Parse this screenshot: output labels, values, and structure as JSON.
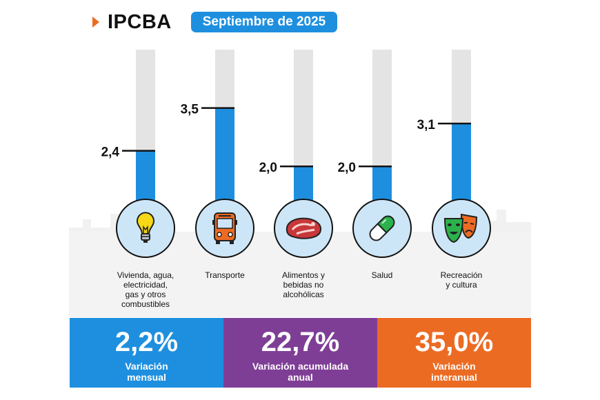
{
  "header": {
    "brand": "IPCBA",
    "period": "Septiembre de 2025"
  },
  "colors": {
    "accent_blue": "#1e8fdf",
    "accent_purple": "#7f3e96",
    "accent_orange": "#ec6b23",
    "track_gray": "#e4e4e4"
  },
  "chart_data": {
    "type": "bar",
    "title": "IPCBA Septiembre de 2025",
    "categories": [
      "Vivienda, agua, electricidad, gas y otros combustibles",
      "Transporte",
      "Alimentos y bebidas no alcohólicas",
      "Salud",
      "Recreación y cultura"
    ],
    "category_labels": [
      "Vivienda, agua,\nelectricidad,\ngas y otros\ncombustibles",
      "Transporte",
      "Alimentos y\nbebidas no\nalcohólicas",
      "Salud",
      "Recreación\ny cultura"
    ],
    "values": [
      2.4,
      3.5,
      2.0,
      2.0,
      3.1
    ],
    "value_labels": [
      "2,4",
      "3,5",
      "2,0",
      "2,0",
      "3,1"
    ],
    "icons": [
      "lightbulb-icon",
      "bus-icon",
      "steak-icon",
      "pill-icon",
      "theater-masks-icon"
    ],
    "ylim": [
      1.1,
      5.0
    ],
    "xlabel": "",
    "ylabel": ""
  },
  "summary": [
    {
      "value": "2,2%",
      "label": "Variación\nmensual"
    },
    {
      "value": "22,7%",
      "label": "Variación acumulada\nanual"
    },
    {
      "value": "35,0%",
      "label": "Variación\ninteranual"
    }
  ]
}
